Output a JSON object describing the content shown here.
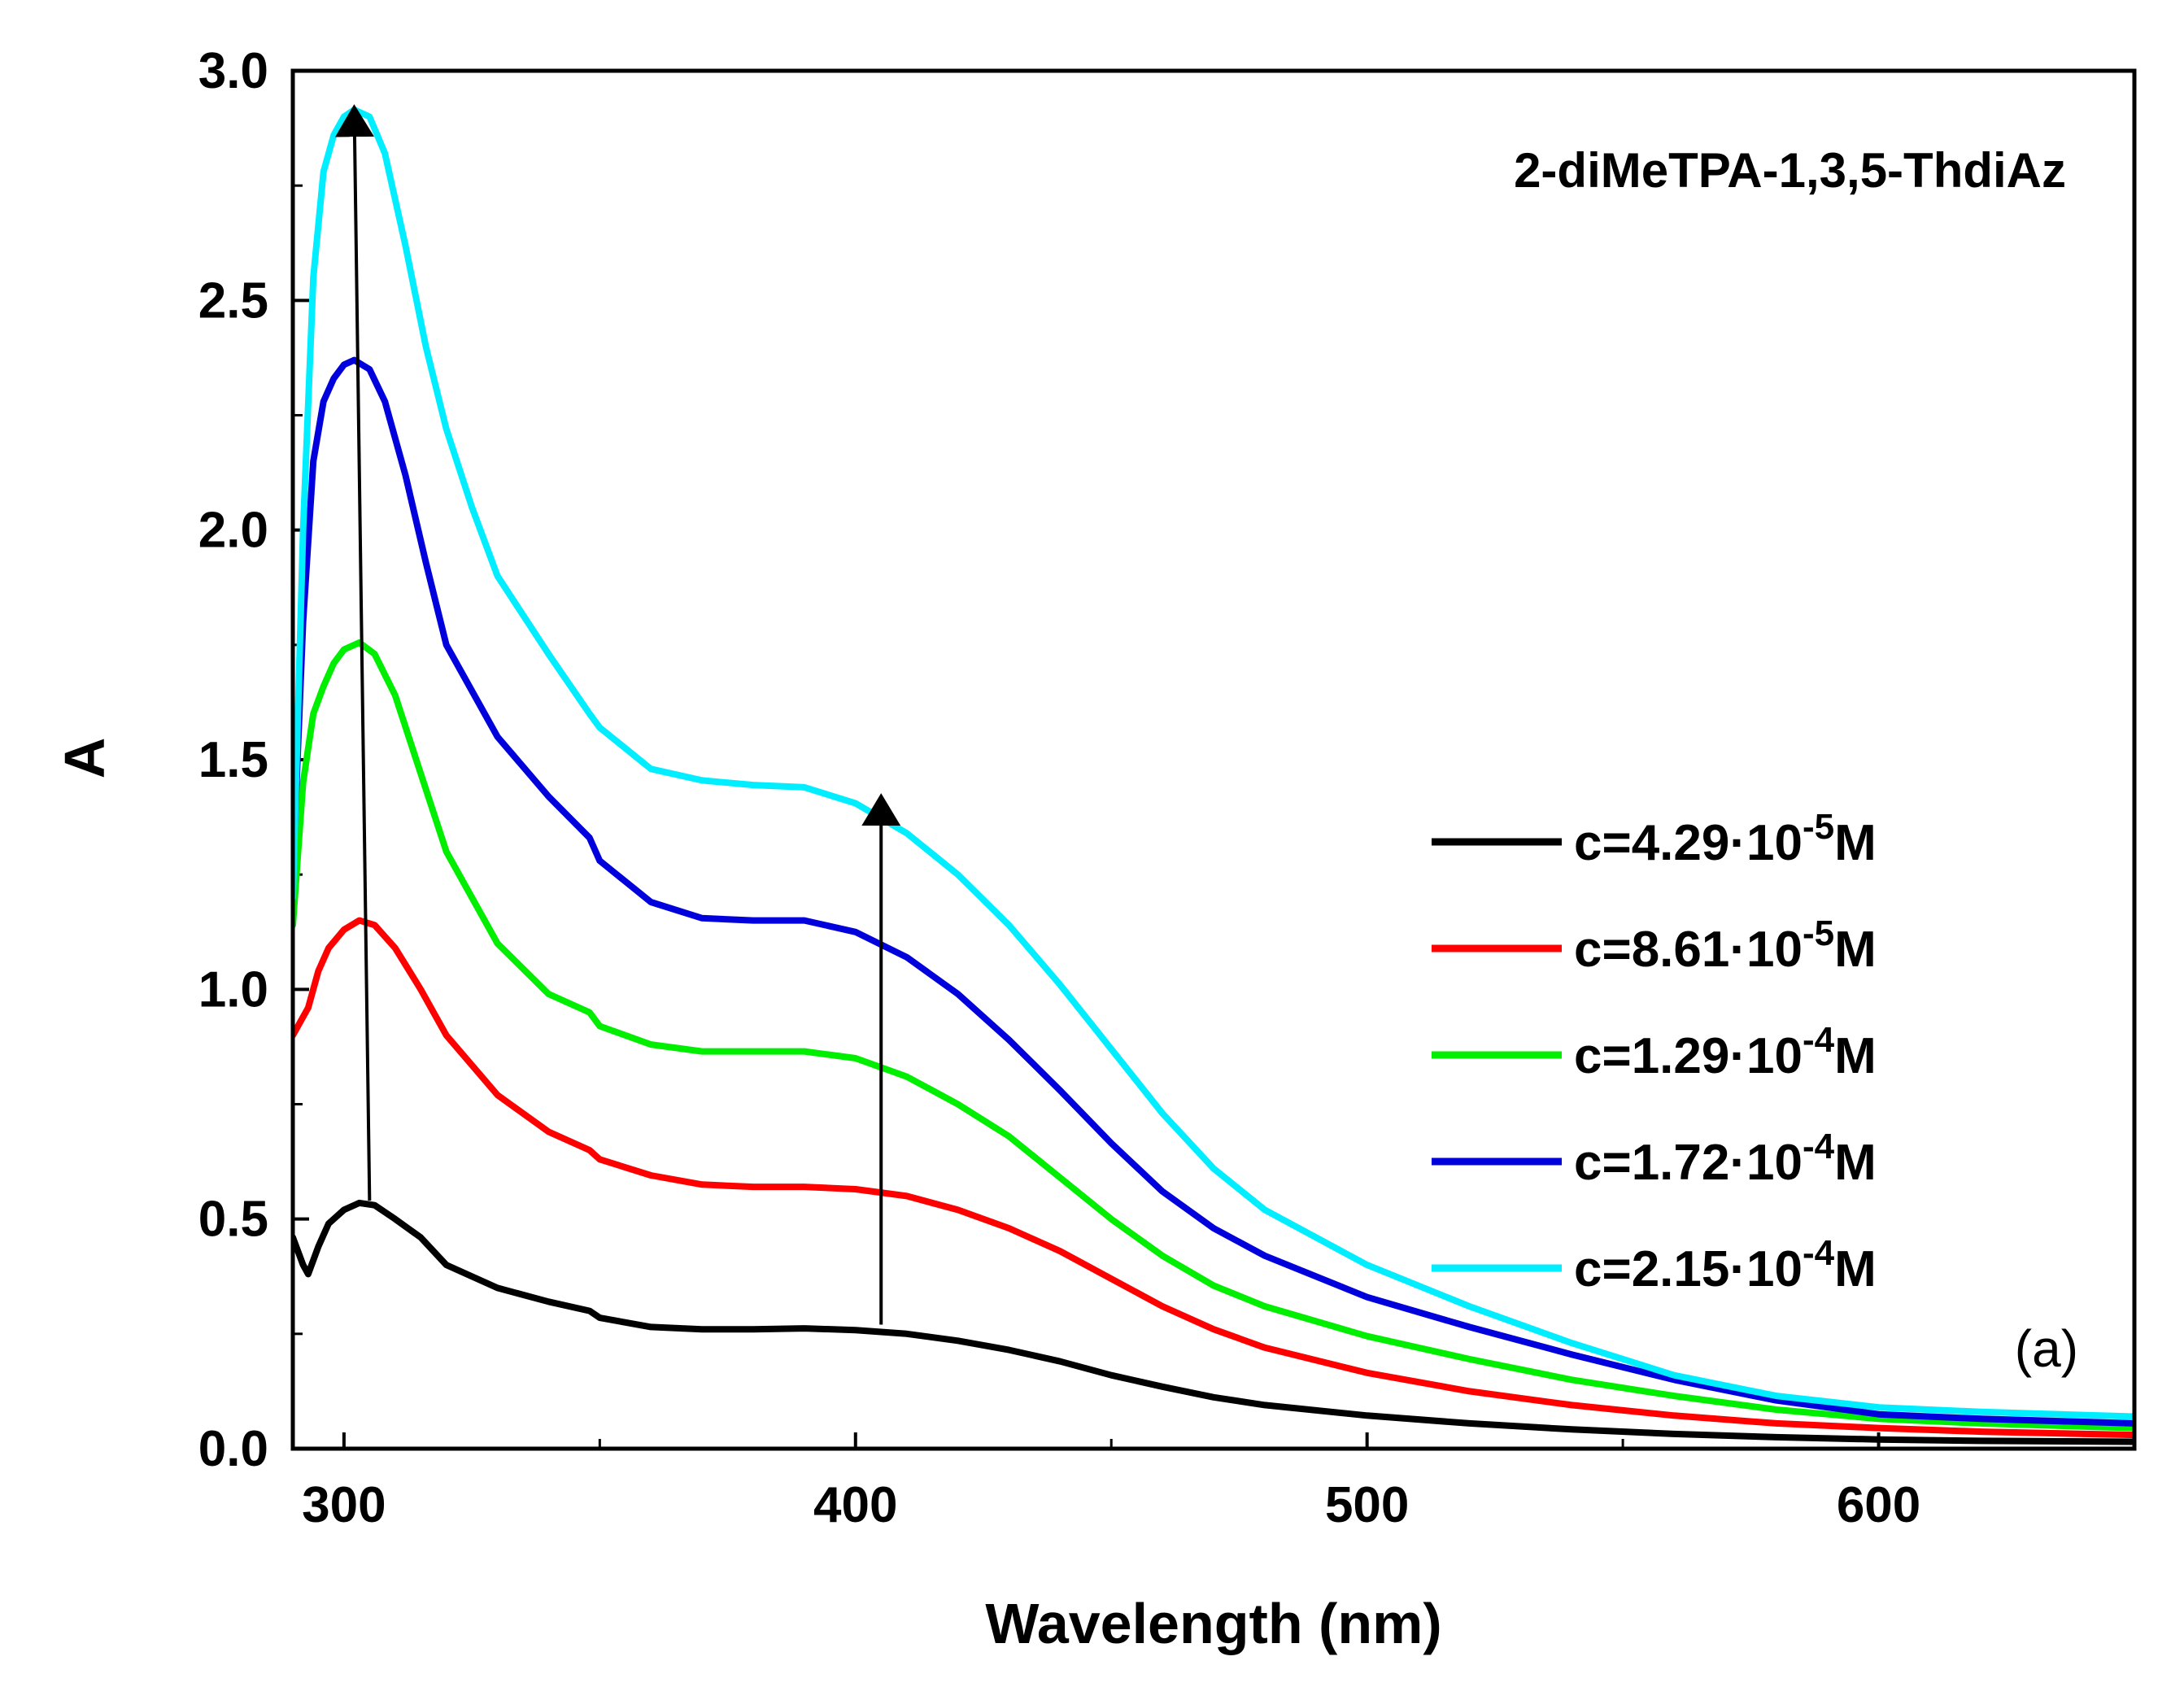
{
  "chart_data": {
    "type": "line",
    "title": "2-diMeTPA-1,3,5-ThdiAz",
    "panel_label": "(a)",
    "xlabel": "Wavelength (nm)",
    "ylabel": "A",
    "xlim": [
      290,
      650
    ],
    "ylim": [
      0,
      3.0
    ],
    "x_ticks": [
      300,
      400,
      500,
      600
    ],
    "y_ticks": [
      0.0,
      0.5,
      1.0,
      1.5,
      2.0,
      2.5,
      3.0
    ],
    "y_tick_labels": [
      "0.0",
      "0.5",
      "1.0",
      "1.5",
      "2.0",
      "2.5",
      "3.0"
    ],
    "legend_position": "right",
    "series": [
      {
        "name": "c=4.29·10-5M",
        "label_main": "c=4.29·10",
        "label_exp": "-5",
        "label_unit": "M",
        "color": "#000000",
        "x": [
          290,
          292,
          293,
          295,
          297,
          300,
          303,
          306,
          310,
          315,
          320,
          330,
          340,
          348,
          350,
          360,
          370,
          380,
          390,
          400,
          410,
          420,
          430,
          440,
          450,
          460,
          470,
          480,
          500,
          520,
          540,
          560,
          580,
          600,
          620,
          650
        ],
        "y": [
          0.46,
          0.4,
          0.38,
          0.44,
          0.49,
          0.52,
          0.535,
          0.53,
          0.5,
          0.46,
          0.4,
          0.35,
          0.32,
          0.3,
          0.285,
          0.265,
          0.26,
          0.26,
          0.262,
          0.258,
          0.25,
          0.235,
          0.215,
          0.19,
          0.16,
          0.135,
          0.112,
          0.095,
          0.072,
          0.055,
          0.042,
          0.032,
          0.025,
          0.02,
          0.017,
          0.015
        ]
      },
      {
        "name": "c=8.61·10-5M",
        "label_main": "c=8.61·10",
        "label_exp": "-5",
        "label_unit": "M",
        "color": "#ff0000",
        "x": [
          290,
          293,
          295,
          297,
          300,
          303,
          306,
          310,
          315,
          320,
          330,
          340,
          348,
          350,
          360,
          370,
          380,
          390,
          400,
          410,
          420,
          430,
          440,
          450,
          460,
          470,
          480,
          500,
          520,
          540,
          560,
          580,
          600,
          620,
          650
        ],
        "y": [
          0.9,
          0.96,
          1.04,
          1.09,
          1.13,
          1.15,
          1.14,
          1.09,
          1.0,
          0.9,
          0.77,
          0.69,
          0.65,
          0.63,
          0.595,
          0.575,
          0.57,
          0.57,
          0.565,
          0.55,
          0.52,
          0.48,
          0.43,
          0.37,
          0.31,
          0.26,
          0.22,
          0.165,
          0.125,
          0.095,
          0.072,
          0.055,
          0.045,
          0.037,
          0.03
        ]
      },
      {
        "name": "c=1.29·10-4M",
        "label_main": "c=1.29·10",
        "label_exp": "-4",
        "label_unit": "M",
        "color": "#00ee00",
        "x": [
          290,
          292,
          294,
          296,
          298,
          300,
          303,
          306,
          310,
          315,
          320,
          330,
          340,
          348,
          350,
          360,
          370,
          380,
          390,
          400,
          410,
          420,
          430,
          440,
          450,
          460,
          470,
          480,
          500,
          520,
          540,
          560,
          580,
          600,
          620,
          650
        ],
        "y": [
          1.14,
          1.45,
          1.6,
          1.66,
          1.71,
          1.74,
          1.755,
          1.73,
          1.64,
          1.47,
          1.3,
          1.1,
          0.99,
          0.95,
          0.92,
          0.88,
          0.865,
          0.865,
          0.865,
          0.85,
          0.81,
          0.75,
          0.68,
          0.59,
          0.5,
          0.42,
          0.355,
          0.31,
          0.245,
          0.195,
          0.15,
          0.115,
          0.085,
          0.065,
          0.055,
          0.045
        ]
      },
      {
        "name": "c=1.72·10-4M",
        "label_main": "c=1.72·10",
        "label_exp": "-4",
        "label_unit": "M",
        "color": "#0000dd",
        "x": [
          290,
          292,
          294,
          296,
          298,
          300,
          302,
          305,
          308,
          312,
          316,
          320,
          330,
          340,
          348,
          350,
          360,
          370,
          380,
          390,
          400,
          410,
          420,
          430,
          440,
          450,
          460,
          470,
          480,
          500,
          520,
          540,
          560,
          580,
          600,
          620,
          650
        ],
        "y": [
          1.25,
          1.8,
          2.15,
          2.28,
          2.33,
          2.36,
          2.37,
          2.35,
          2.28,
          2.12,
          1.93,
          1.75,
          1.55,
          1.42,
          1.33,
          1.28,
          1.19,
          1.155,
          1.15,
          1.15,
          1.125,
          1.07,
          0.99,
          0.89,
          0.78,
          0.665,
          0.56,
          0.48,
          0.42,
          0.33,
          0.265,
          0.205,
          0.15,
          0.105,
          0.075,
          0.065,
          0.055
        ]
      },
      {
        "name": "c=2.15·10-4M",
        "label_main": "c=2.15·10",
        "label_exp": "-4",
        "label_unit": "M",
        "color": "#00eeff",
        "x": [
          290,
          292,
          294,
          296,
          298,
          300,
          302,
          305,
          308,
          312,
          316,
          320,
          325,
          330,
          340,
          348,
          350,
          360,
          370,
          380,
          390,
          400,
          410,
          420,
          430,
          440,
          450,
          460,
          470,
          480,
          500,
          520,
          540,
          560,
          580,
          600,
          620,
          650
        ],
        "y": [
          1.2,
          2.0,
          2.55,
          2.78,
          2.86,
          2.9,
          2.915,
          2.9,
          2.82,
          2.62,
          2.4,
          2.22,
          2.05,
          1.9,
          1.73,
          1.6,
          1.57,
          1.48,
          1.455,
          1.445,
          1.44,
          1.405,
          1.34,
          1.25,
          1.14,
          1.01,
          0.87,
          0.73,
          0.61,
          0.52,
          0.4,
          0.31,
          0.23,
          0.16,
          0.115,
          0.09,
          0.08,
          0.07
        ]
      }
    ],
    "annotations": [
      {
        "type": "arrow",
        "from": [
          305,
          0.54
        ],
        "to": [
          302,
          2.92
        ]
      },
      {
        "type": "arrow",
        "from": [
          405,
          0.27
        ],
        "to": [
          405,
          1.42
        ]
      }
    ]
  }
}
